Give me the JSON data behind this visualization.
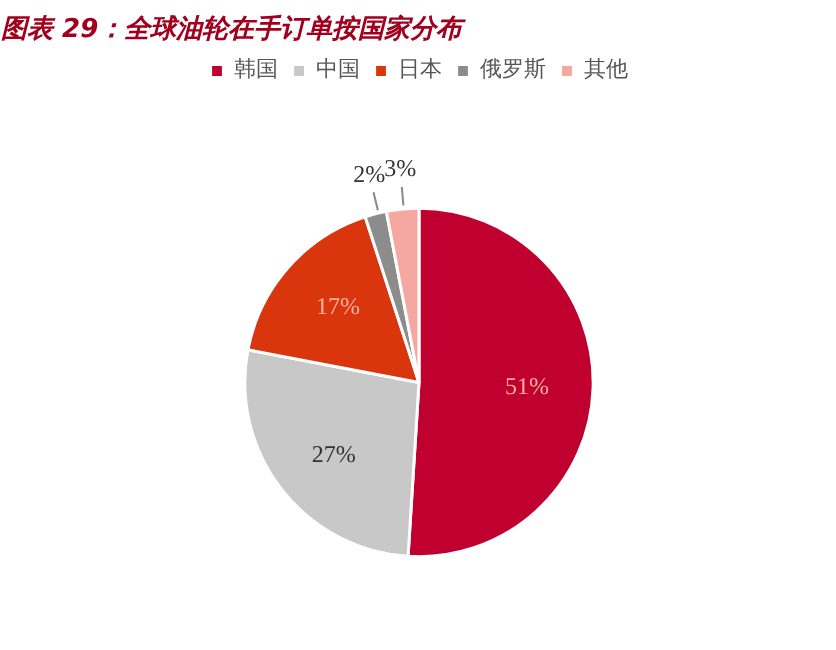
{
  "chart_data": {
    "type": "pie",
    "title": "图表 29：全球油轮在手订单按国家分布",
    "categories": [
      "韩国",
      "中国",
      "日本",
      "俄罗斯",
      "其他"
    ],
    "values": [
      51,
      27,
      17,
      2,
      3
    ],
    "colors": [
      "#c0002f",
      "#c8c8c8",
      "#d9360e",
      "#8c8c8c",
      "#f4a8a0"
    ],
    "value_labels": [
      "51%",
      "27%",
      "17%",
      "2%",
      "3%"
    ],
    "legend": "top"
  }
}
